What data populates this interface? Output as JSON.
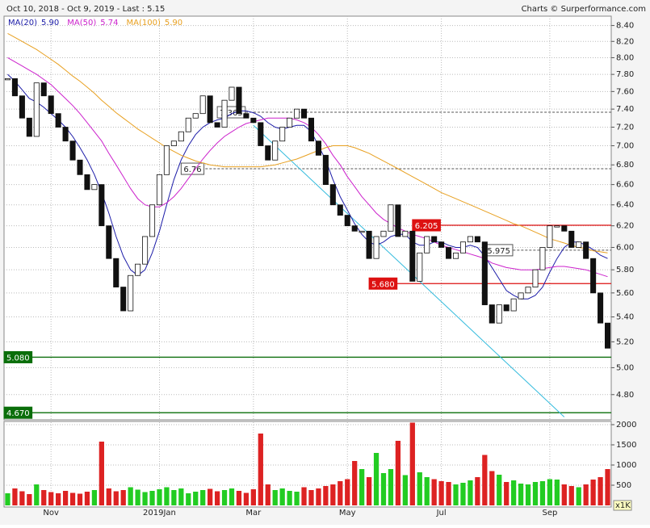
{
  "header": {
    "range": "Oct 10, 2018 - Oct 9, 2019 - Last : 5.15",
    "credit": "Charts © Surperformance.com"
  },
  "chart_data": {
    "type": "candlestick",
    "log_scale": true,
    "grid": true,
    "categories": [
      null,
      null,
      null,
      null,
      null,
      null,
      "Nov",
      null,
      null,
      null,
      null,
      null,
      null,
      null,
      null,
      null,
      null,
      null,
      null,
      null,
      null,
      "2019Jan",
      null,
      null,
      null,
      null,
      null,
      null,
      null,
      null,
      null,
      null,
      null,
      null,
      "Mar",
      null,
      null,
      null,
      null,
      null,
      null,
      null,
      null,
      null,
      null,
      null,
      null,
      "May",
      null,
      null,
      null,
      null,
      null,
      null,
      null,
      null,
      null,
      null,
      null,
      null,
      "Jul",
      null,
      null,
      null,
      null,
      null,
      null,
      null,
      null,
      null,
      null,
      null,
      null,
      null,
      null,
      "Sep",
      null,
      null,
      null,
      null,
      null,
      null,
      null,
      null
    ],
    "values": [
      7.75,
      7.55,
      7.3,
      7.1,
      7.7,
      7.55,
      7.35,
      7.2,
      7.05,
      6.85,
      6.7,
      6.55,
      6.6,
      6.2,
      5.9,
      5.65,
      5.45,
      5.75,
      5.85,
      6.1,
      6.4,
      6.7,
      7.0,
      7.05,
      7.15,
      7.3,
      7.35,
      7.55,
      7.25,
      7.2,
      7.5,
      7.65,
      7.35,
      7.3,
      7.25,
      7.0,
      6.85,
      7.05,
      7.2,
      7.3,
      7.4,
      7.3,
      7.05,
      6.9,
      6.6,
      6.4,
      6.3,
      6.2,
      6.15,
      6.15,
      5.9,
      6.1,
      6.15,
      6.4,
      6.1,
      6.15,
      5.7,
      5.95,
      6.1,
      6.05,
      6.0,
      5.9,
      5.95,
      6.05,
      6.1,
      6.05,
      5.5,
      5.35,
      5.5,
      5.45,
      5.55,
      5.6,
      5.65,
      5.8,
      6.0,
      6.2,
      6.2,
      6.15,
      6.0,
      6.05,
      5.9,
      5.6,
      5.35,
      5.15
    ],
    "series": [
      {
        "name": "MA(20)",
        "color": "#1c1ca8",
        "last": {
          "value": 5.9,
          "label": "5.90"
        },
        "values": [
          7.8,
          7.72,
          7.62,
          7.52,
          7.48,
          7.42,
          7.35,
          7.28,
          7.2,
          7.1,
          6.98,
          6.85,
          6.7,
          6.52,
          6.32,
          6.1,
          5.92,
          5.8,
          5.75,
          5.8,
          5.95,
          6.15,
          6.4,
          6.65,
          6.85,
          7.0,
          7.12,
          7.2,
          7.25,
          7.28,
          7.3,
          7.35,
          7.38,
          7.38,
          7.36,
          7.32,
          7.25,
          7.2,
          7.18,
          7.2,
          7.22,
          7.22,
          7.15,
          7.0,
          6.85,
          6.65,
          6.48,
          6.35,
          6.22,
          6.12,
          6.05,
          6.02,
          6.05,
          6.1,
          6.12,
          6.12,
          6.05,
          6.02,
          6.02,
          6.05,
          6.05,
          6.02,
          6.0,
          6.0,
          6.02,
          6.0,
          5.92,
          5.82,
          5.72,
          5.62,
          5.58,
          5.55,
          5.55,
          5.58,
          5.65,
          5.78,
          5.9,
          6.0,
          6.05,
          6.05,
          6.02,
          5.98,
          5.93,
          5.9
        ]
      },
      {
        "name": "MA(50)",
        "color": "#cc22cc",
        "last": {
          "value": 5.74,
          "label": "5.74"
        },
        "values": [
          8.0,
          7.95,
          7.9,
          7.85,
          7.8,
          7.74,
          7.68,
          7.6,
          7.52,
          7.44,
          7.35,
          7.25,
          7.15,
          7.05,
          6.92,
          6.8,
          6.68,
          6.56,
          6.46,
          6.4,
          6.38,
          6.38,
          6.42,
          6.48,
          6.56,
          6.66,
          6.76,
          6.86,
          6.95,
          7.03,
          7.1,
          7.15,
          7.2,
          7.24,
          7.26,
          7.28,
          7.3,
          7.3,
          7.3,
          7.3,
          7.28,
          7.25,
          7.2,
          7.12,
          7.02,
          6.9,
          6.8,
          6.68,
          6.58,
          6.48,
          6.4,
          6.32,
          6.26,
          6.22,
          6.18,
          6.15,
          6.12,
          6.1,
          6.08,
          6.05,
          6.02,
          6.0,
          5.98,
          5.96,
          5.94,
          5.92,
          5.9,
          5.86,
          5.84,
          5.82,
          5.81,
          5.8,
          5.8,
          5.8,
          5.81,
          5.82,
          5.83,
          5.83,
          5.82,
          5.81,
          5.8,
          5.78,
          5.76,
          5.74
        ]
      },
      {
        "name": "MA(100)",
        "color": "#e8a020",
        "last": {
          "value": 5.9,
          "label": "5.90"
        },
        "values": [
          8.3,
          8.25,
          8.2,
          8.15,
          8.1,
          8.04,
          7.98,
          7.92,
          7.85,
          7.78,
          7.72,
          7.65,
          7.58,
          7.5,
          7.43,
          7.36,
          7.3,
          7.24,
          7.18,
          7.13,
          7.08,
          7.03,
          6.98,
          6.94,
          6.9,
          6.87,
          6.84,
          6.82,
          6.8,
          6.79,
          6.78,
          6.78,
          6.78,
          6.78,
          6.78,
          6.78,
          6.79,
          6.8,
          6.82,
          6.84,
          6.86,
          6.89,
          6.92,
          6.95,
          6.98,
          7.0,
          7.0,
          7.0,
          6.98,
          6.95,
          6.92,
          6.88,
          6.84,
          6.8,
          6.76,
          6.72,
          6.68,
          6.64,
          6.6,
          6.56,
          6.52,
          6.49,
          6.46,
          6.43,
          6.4,
          6.37,
          6.34,
          6.31,
          6.28,
          6.25,
          6.22,
          6.2,
          6.17,
          6.14,
          6.11,
          6.08,
          6.06,
          6.04,
          6.02,
          6.0,
          5.99,
          5.97,
          5.96,
          5.95
        ]
      }
    ],
    "ylim": [
      4.62,
      8.52
    ],
    "yticks": [
      {
        "value": 4.8,
        "label": "4.80"
      },
      {
        "value": 5.0,
        "label": "5.00"
      },
      {
        "value": 5.2,
        "label": "5.20"
      },
      {
        "value": 5.4,
        "label": "5.40"
      },
      {
        "value": 5.6,
        "label": "5.60"
      },
      {
        "value": 5.8,
        "label": "5.80"
      },
      {
        "value": 6.0,
        "label": "6.00"
      },
      {
        "value": 6.2,
        "label": "6.20"
      },
      {
        "value": 6.4,
        "label": "6.40"
      },
      {
        "value": 6.6,
        "label": "6.60"
      },
      {
        "value": 6.8,
        "label": "6.80"
      },
      {
        "value": 7.0,
        "label": "7.00"
      },
      {
        "value": 7.2,
        "label": "7.20"
      },
      {
        "value": 7.4,
        "label": "7.40"
      },
      {
        "value": 7.6,
        "label": "7.60"
      },
      {
        "value": 7.8,
        "label": "7.80"
      },
      {
        "value": 8.0,
        "label": "8.00"
      },
      {
        "value": 8.2,
        "label": "8.20"
      },
      {
        "value": 8.4,
        "label": "8.40"
      }
    ],
    "levels": [
      {
        "value": 7.365,
        "style": "dashed",
        "color": "#555555",
        "start_index": 29
      },
      {
        "value": 6.76,
        "style": "dashed",
        "color": "#555555",
        "start_index": 24
      },
      {
        "value": 6.205,
        "style": "solid",
        "color": "#dd1111",
        "start_index": 56
      },
      {
        "value": 5.975,
        "style": "dashed",
        "color": "#555555",
        "start_index": 66
      },
      {
        "value": 5.68,
        "label": "5.680",
        "style": "solid",
        "color": "#dd1111",
        "start_index": 50
      },
      {
        "value": 5.08,
        "label": "5.080",
        "style": "solid",
        "color": "#0a6e0a",
        "start_index": 0
      },
      {
        "value": 4.67,
        "label": "4.670",
        "style": "solid",
        "color": "#0a6e0a",
        "start_index": 0
      }
    ],
    "trendline": {
      "color": "#33bbdd",
      "start_index": 34,
      "end_index": 77,
      "values": [
        7.22,
        4.64
      ]
    },
    "volume": {
      "unit_label": "x1K",
      "up_color": "#22cc22",
      "down_color": "#dd2222",
      "ylim": [
        0,
        2060
      ],
      "yticks": [
        500,
        1000,
        1500,
        2000
      ],
      "values": [
        300,
        420,
        350,
        280,
        520,
        380,
        330,
        300,
        360,
        310,
        290,
        340,
        380,
        1580,
        420,
        350,
        380,
        450,
        390,
        330,
        360,
        400,
        450,
        380,
        420,
        300,
        340,
        380,
        410,
        350,
        380,
        420,
        360,
        310,
        400,
        1780,
        520,
        380,
        420,
        360,
        340,
        450,
        380,
        420,
        480,
        520,
        600,
        650,
        1100,
        900,
        700,
        1300,
        800,
        900,
        1600,
        750,
        2050,
        820,
        700,
        650,
        600,
        580,
        520,
        560,
        620,
        700,
        1250,
        850,
        760,
        580,
        620,
        540,
        520,
        580,
        600,
        650,
        640,
        520,
        480,
        450,
        520,
        640,
        700,
        900
      ]
    }
  }
}
